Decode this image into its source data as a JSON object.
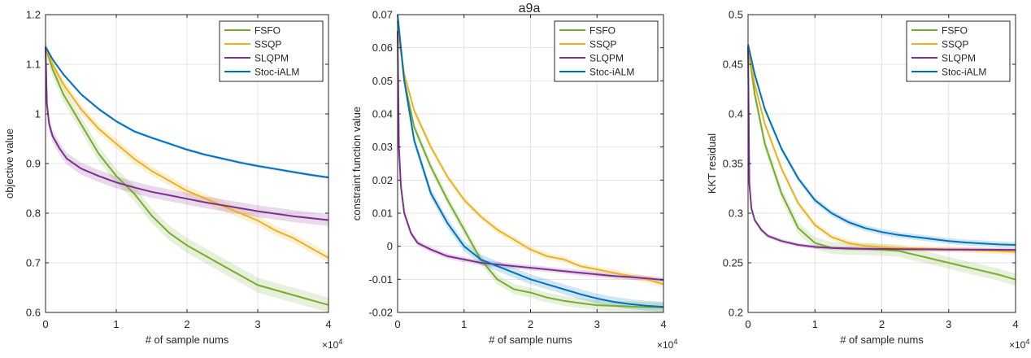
{
  "figure_title": "a9a",
  "exponent_label": "×10^4",
  "exponent_base": "×10",
  "exponent_power": "4",
  "colors": {
    "FSFO": "#77AC30",
    "SSQP": "#EDB120",
    "SLQPM": "#7E2F8E",
    "Stoc-iALM": "#0072BD"
  },
  "chart_data": [
    {
      "type": "line",
      "title": "",
      "xlabel": "# of sample nums",
      "ylabel": "objective value",
      "xlim": [
        0,
        40000
      ],
      "ylim": [
        0.6,
        1.2
      ],
      "grid": true,
      "legend_position": "top-right",
      "xticks": [
        0,
        10000,
        20000,
        30000,
        40000
      ],
      "xtick_labels": [
        "0",
        "1",
        "2",
        "3",
        "4"
      ],
      "yticks": [
        0.6,
        0.7,
        0.8,
        0.9,
        1.0,
        1.1,
        1.2
      ],
      "ytick_labels": [
        "0.6",
        "0.7",
        "0.8",
        "0.9",
        "1",
        "1.1",
        "1.2"
      ],
      "series": [
        {
          "name": "FSFO",
          "band": 0.015,
          "x": [
            0,
            1000,
            2500,
            5000,
            7500,
            10000,
            12500,
            15000,
            17500,
            20000,
            22500,
            25000,
            27500,
            30000,
            32500,
            35000,
            37500,
            40000
          ],
          "y": [
            1.135,
            1.09,
            1.04,
            0.98,
            0.92,
            0.875,
            0.84,
            0.795,
            0.76,
            0.735,
            0.715,
            0.695,
            0.675,
            0.655,
            0.645,
            0.635,
            0.625,
            0.615
          ]
        },
        {
          "name": "SSQP",
          "band": 0.01,
          "x": [
            0,
            1000,
            2500,
            5000,
            7500,
            10000,
            12500,
            15000,
            17500,
            20000,
            22500,
            25000,
            27500,
            30000,
            32500,
            35000,
            37500,
            40000
          ],
          "y": [
            1.135,
            1.1,
            1.06,
            1.01,
            0.97,
            0.94,
            0.91,
            0.885,
            0.865,
            0.845,
            0.83,
            0.815,
            0.8,
            0.785,
            0.765,
            0.75,
            0.73,
            0.71
          ]
        },
        {
          "name": "SLQPM",
          "band": 0.012,
          "x": [
            0,
            200,
            500,
            1000,
            2000,
            3000,
            5000,
            7500,
            10000,
            12500,
            15000,
            17500,
            20000,
            22500,
            25000,
            27500,
            30000,
            32500,
            35000,
            37500,
            40000
          ],
          "y": [
            1.135,
            1.02,
            0.98,
            0.955,
            0.93,
            0.91,
            0.89,
            0.875,
            0.862,
            0.852,
            0.843,
            0.836,
            0.829,
            0.822,
            0.816,
            0.81,
            0.804,
            0.799,
            0.794,
            0.79,
            0.786
          ]
        },
        {
          "name": "Stoc-iALM",
          "band": 0.003,
          "x": [
            0,
            1000,
            2500,
            5000,
            7500,
            10000,
            12500,
            15000,
            17500,
            20000,
            22500,
            25000,
            27500,
            30000,
            32500,
            35000,
            37500,
            40000
          ],
          "y": [
            1.135,
            1.11,
            1.08,
            1.04,
            1.01,
            0.985,
            0.965,
            0.952,
            0.94,
            0.928,
            0.918,
            0.91,
            0.902,
            0.895,
            0.889,
            0.883,
            0.877,
            0.872
          ]
        }
      ]
    },
    {
      "type": "line",
      "title": "a9a",
      "xlabel": "# of sample nums",
      "ylabel": "constraint function value",
      "xlim": [
        0,
        40000
      ],
      "ylim": [
        -0.02,
        0.07
      ],
      "grid": true,
      "legend_position": "top-right",
      "xticks": [
        0,
        10000,
        20000,
        30000,
        40000
      ],
      "xtick_labels": [
        "0",
        "1",
        "2",
        "3",
        "4"
      ],
      "yticks": [
        -0.02,
        -0.01,
        0,
        0.01,
        0.02,
        0.03,
        0.04,
        0.05,
        0.06,
        0.07
      ],
      "ytick_labels": [
        "-0.02",
        "-0.01",
        "0",
        "0.01",
        "0.02",
        "0.03",
        "0.04",
        "0.05",
        "0.06",
        "0.07"
      ],
      "series": [
        {
          "name": "FSFO",
          "band": 0.0015,
          "x": [
            0,
            1000,
            2500,
            5000,
            7500,
            10000,
            12500,
            15000,
            17500,
            20000,
            22500,
            25000,
            27500,
            30000,
            32500,
            35000,
            37500,
            40000
          ],
          "y": [
            0.068,
            0.05,
            0.036,
            0.024,
            0.014,
            0.005,
            -0.004,
            -0.01,
            -0.013,
            -0.014,
            -0.0155,
            -0.0165,
            -0.0172,
            -0.0178,
            -0.018,
            -0.0182,
            -0.0184,
            -0.0185
          ]
        },
        {
          "name": "SSQP",
          "band": 0.001,
          "x": [
            0,
            1000,
            2500,
            5000,
            7500,
            10000,
            12500,
            15000,
            17500,
            20000,
            22500,
            25000,
            27500,
            30000,
            32500,
            35000,
            37500,
            40000
          ],
          "y": [
            0.065,
            0.052,
            0.041,
            0.03,
            0.021,
            0.014,
            0.009,
            0.005,
            0.002,
            -0.001,
            -0.003,
            -0.004,
            -0.006,
            -0.007,
            -0.008,
            -0.009,
            -0.01,
            -0.0115
          ]
        },
        {
          "name": "SLQPM",
          "band": 0.0008,
          "x": [
            0,
            200,
            500,
            1000,
            2000,
            3000,
            5000,
            7500,
            10000,
            12500,
            15000,
            17500,
            20000,
            22500,
            25000,
            27500,
            30000,
            32500,
            35000,
            37500,
            40000
          ],
          "y": [
            0.065,
            0.03,
            0.018,
            0.01,
            0.004,
            0.001,
            -0.001,
            -0.003,
            -0.004,
            -0.005,
            -0.0055,
            -0.006,
            -0.0065,
            -0.007,
            -0.0075,
            -0.008,
            -0.0085,
            -0.009,
            -0.0093,
            -0.0097,
            -0.0102
          ]
        },
        {
          "name": "Stoc-iALM",
          "band": 0.0015,
          "x": [
            0,
            1000,
            2500,
            5000,
            7500,
            10000,
            12500,
            15000,
            17500,
            20000,
            22500,
            25000,
            27500,
            30000,
            32500,
            35000,
            37500,
            40000
          ],
          "y": [
            0.07,
            0.05,
            0.032,
            0.016,
            0.007,
            0.0,
            -0.004,
            -0.006,
            -0.008,
            -0.01,
            -0.0115,
            -0.013,
            -0.0145,
            -0.0158,
            -0.0168,
            -0.0175,
            -0.018,
            -0.0183
          ]
        }
      ]
    },
    {
      "type": "line",
      "title": "",
      "xlabel": "# of sample nums",
      "ylabel": "KKT residual",
      "xlim": [
        0,
        40000
      ],
      "ylim": [
        0.2,
        0.5
      ],
      "grid": true,
      "legend_position": "top-right",
      "xticks": [
        0,
        10000,
        20000,
        30000,
        40000
      ],
      "xtick_labels": [
        "0",
        "1",
        "2",
        "3",
        "4"
      ],
      "yticks": [
        0.2,
        0.25,
        0.3,
        0.35,
        0.4,
        0.45,
        0.5
      ],
      "ytick_labels": [
        "0.2",
        "0.25",
        "0.3",
        "0.35",
        "0.4",
        "0.45",
        "0.5"
      ],
      "series": [
        {
          "name": "FSFO",
          "band": 0.006,
          "x": [
            0,
            1000,
            2500,
            5000,
            7500,
            10000,
            12500,
            15000,
            17500,
            20000,
            22500,
            25000,
            27500,
            30000,
            32500,
            35000,
            37500,
            40000
          ],
          "y": [
            0.468,
            0.42,
            0.37,
            0.32,
            0.285,
            0.27,
            0.265,
            0.264,
            0.264,
            0.263,
            0.262,
            0.258,
            0.254,
            0.25,
            0.246,
            0.242,
            0.238,
            0.233
          ]
        },
        {
          "name": "SSQP",
          "band": 0.003,
          "x": [
            0,
            1000,
            2500,
            5000,
            7500,
            10000,
            12500,
            15000,
            17500,
            20000,
            22500,
            25000,
            27500,
            30000,
            32500,
            35000,
            37500,
            40000
          ],
          "y": [
            0.468,
            0.43,
            0.39,
            0.345,
            0.31,
            0.288,
            0.276,
            0.27,
            0.267,
            0.266,
            0.265,
            0.2645,
            0.264,
            0.2635,
            0.263,
            0.2625,
            0.2618,
            0.261
          ]
        },
        {
          "name": "SLQPM",
          "band": 0.002,
          "x": [
            0,
            200,
            500,
            1000,
            2000,
            3000,
            5000,
            7500,
            10000,
            12500,
            15000,
            17500,
            20000,
            22500,
            25000,
            27500,
            30000,
            32500,
            35000,
            37500,
            40000
          ],
          "y": [
            0.468,
            0.33,
            0.305,
            0.293,
            0.283,
            0.277,
            0.272,
            0.268,
            0.266,
            0.265,
            0.2645,
            0.264,
            0.264,
            0.2638,
            0.2636,
            0.2635,
            0.2634,
            0.2633,
            0.2632,
            0.2631,
            0.263
          ]
        },
        {
          "name": "Stoc-iALM",
          "band": 0.003,
          "x": [
            0,
            1000,
            2500,
            5000,
            7500,
            10000,
            12500,
            15000,
            17500,
            20000,
            22500,
            25000,
            27500,
            30000,
            32500,
            35000,
            37500,
            40000
          ],
          "y": [
            0.47,
            0.44,
            0.405,
            0.365,
            0.335,
            0.313,
            0.3,
            0.291,
            0.285,
            0.281,
            0.278,
            0.276,
            0.274,
            0.272,
            0.2705,
            0.2695,
            0.2685,
            0.268
          ]
        }
      ]
    }
  ]
}
